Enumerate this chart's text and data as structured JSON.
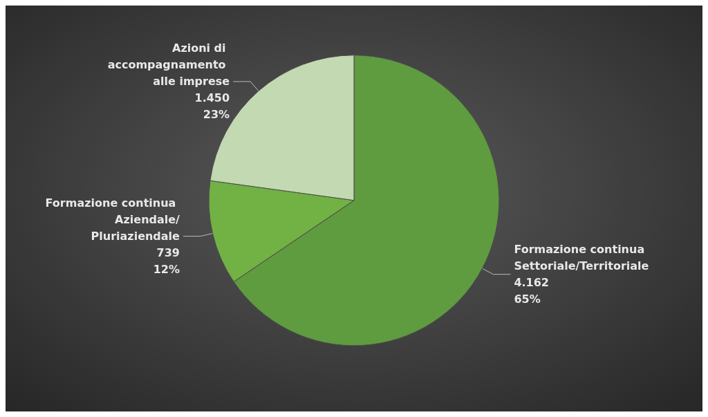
{
  "chart_data": {
    "type": "pie",
    "categories": [
      "Formazione continua Settoriale/Territoriale",
      "Formazione continua Aziendale/Pluriaziendale",
      "Azioni di accompagnamento alle imprese"
    ],
    "values": [
      4162,
      739,
      1450
    ],
    "colors": [
      "#5f9b3f",
      "#72b144",
      "#c2d9b1"
    ],
    "value_labels": [
      "4.162\n65%",
      "739\n12%",
      "1.450\n23%"
    ],
    "legend": false
  }
}
